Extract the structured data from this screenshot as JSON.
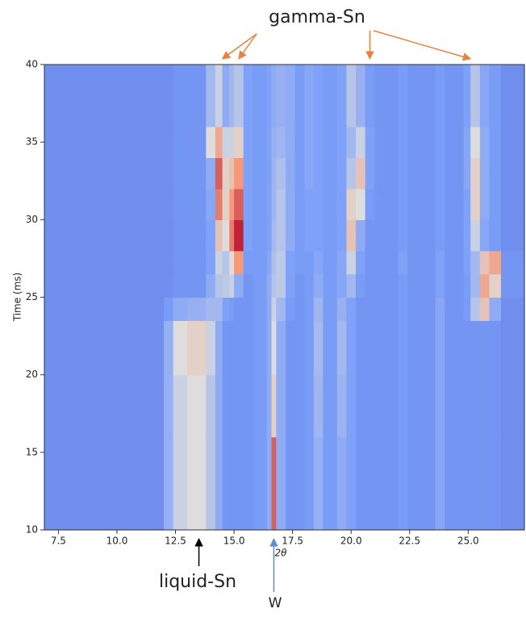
{
  "chart_data": {
    "type": "heatmap",
    "xlabel": "2θ",
    "ylabel": "Time (ms)",
    "colormap": "coolwarm",
    "xlim": [
      6.9,
      27.4
    ],
    "ylim": [
      10,
      40
    ],
    "xticks": [
      7.5,
      {
        "value": 10,
        "label": "10.0"
      },
      12.5,
      {
        "value": 15,
        "label": "15.0"
      },
      17.5,
      {
        "value": 20,
        "label": "20.0"
      },
      22.5,
      {
        "value": 25,
        "label": "25.0"
      }
    ],
    "yticks": [
      10,
      15,
      20,
      25,
      30,
      35,
      40
    ],
    "xbins": [
      6.9,
      12.0,
      12.4,
      13.0,
      13.8,
      14.2,
      14.5,
      14.8,
      15.0,
      15.4,
      15.8,
      16.4,
      16.6,
      16.8,
      17.2,
      17.6,
      18.0,
      18.4,
      18.8,
      19.4,
      19.8,
      20.2,
      20.6,
      21.0,
      22.0,
      22.4,
      23.6,
      24.0,
      24.8,
      25.1,
      25.5,
      25.9,
      26.4,
      27.4
    ],
    "ybins": [
      10,
      16,
      20,
      23.5,
      25,
      26.5,
      28,
      30,
      32,
      34,
      36,
      40
    ],
    "values": [
      [
        0.2,
        0.32,
        0.45,
        0.5,
        0.4,
        0.3,
        0.22,
        0.22,
        0.22,
        0.22,
        0.24,
        0.3,
        0.85,
        0.3,
        0.22,
        0.22,
        0.24,
        0.32,
        0.24,
        0.3,
        0.26,
        0.22,
        0.22,
        0.22,
        0.24,
        0.22,
        0.28,
        0.22,
        0.22,
        0.22,
        0.22,
        0.22,
        0.2
      ],
      [
        0.2,
        0.32,
        0.45,
        0.5,
        0.4,
        0.3,
        0.22,
        0.22,
        0.22,
        0.22,
        0.24,
        0.3,
        0.55,
        0.3,
        0.22,
        0.22,
        0.24,
        0.34,
        0.24,
        0.33,
        0.26,
        0.22,
        0.22,
        0.22,
        0.24,
        0.22,
        0.28,
        0.22,
        0.22,
        0.22,
        0.22,
        0.22,
        0.2
      ],
      [
        0.2,
        0.32,
        0.5,
        0.55,
        0.45,
        0.3,
        0.22,
        0.22,
        0.22,
        0.22,
        0.24,
        0.3,
        0.5,
        0.3,
        0.22,
        0.22,
        0.24,
        0.36,
        0.24,
        0.35,
        0.26,
        0.22,
        0.22,
        0.22,
        0.24,
        0.22,
        0.28,
        0.22,
        0.22,
        0.22,
        0.22,
        0.22,
        0.2
      ],
      [
        0.2,
        0.24,
        0.3,
        0.32,
        0.35,
        0.35,
        0.26,
        0.24,
        0.22,
        0.22,
        0.24,
        0.3,
        0.45,
        0.35,
        0.24,
        0.22,
        0.24,
        0.34,
        0.24,
        0.32,
        0.26,
        0.22,
        0.22,
        0.22,
        0.24,
        0.22,
        0.28,
        0.22,
        0.24,
        0.4,
        0.6,
        0.3,
        0.2
      ],
      [
        0.2,
        0.2,
        0.22,
        0.22,
        0.3,
        0.4,
        0.42,
        0.45,
        0.3,
        0.22,
        0.24,
        0.3,
        0.4,
        0.42,
        0.26,
        0.22,
        0.24,
        0.3,
        0.24,
        0.28,
        0.35,
        0.24,
        0.22,
        0.22,
        0.24,
        0.22,
        0.26,
        0.22,
        0.24,
        0.35,
        0.7,
        0.55,
        0.22
      ],
      [
        0.2,
        0.2,
        0.22,
        0.22,
        0.26,
        0.45,
        0.4,
        0.5,
        0.75,
        0.24,
        0.24,
        0.28,
        0.38,
        0.42,
        0.26,
        0.24,
        0.24,
        0.28,
        0.24,
        0.28,
        0.45,
        0.26,
        0.22,
        0.22,
        0.26,
        0.22,
        0.26,
        0.22,
        0.26,
        0.35,
        0.6,
        0.7,
        0.22
      ],
      [
        0.2,
        0.2,
        0.22,
        0.22,
        0.26,
        0.6,
        0.5,
        0.8,
        0.95,
        0.26,
        0.24,
        0.26,
        0.36,
        0.4,
        0.3,
        0.24,
        0.26,
        0.26,
        0.24,
        0.26,
        0.6,
        0.3,
        0.22,
        0.22,
        0.24,
        0.22,
        0.24,
        0.22,
        0.26,
        0.45,
        0.28,
        0.24,
        0.2
      ],
      [
        0.2,
        0.2,
        0.22,
        0.22,
        0.28,
        0.8,
        0.55,
        0.75,
        0.85,
        0.26,
        0.24,
        0.26,
        0.34,
        0.4,
        0.3,
        0.24,
        0.26,
        0.26,
        0.24,
        0.26,
        0.55,
        0.5,
        0.24,
        0.22,
        0.24,
        0.22,
        0.24,
        0.22,
        0.26,
        0.55,
        0.3,
        0.24,
        0.2
      ],
      [
        0.2,
        0.2,
        0.22,
        0.22,
        0.3,
        0.85,
        0.55,
        0.6,
        0.75,
        0.26,
        0.24,
        0.26,
        0.34,
        0.38,
        0.3,
        0.24,
        0.28,
        0.26,
        0.24,
        0.26,
        0.4,
        0.6,
        0.26,
        0.22,
        0.24,
        0.22,
        0.24,
        0.22,
        0.28,
        0.55,
        0.3,
        0.24,
        0.2
      ],
      [
        0.2,
        0.2,
        0.22,
        0.22,
        0.5,
        0.7,
        0.45,
        0.45,
        0.55,
        0.26,
        0.24,
        0.26,
        0.32,
        0.34,
        0.3,
        0.24,
        0.28,
        0.26,
        0.24,
        0.26,
        0.35,
        0.45,
        0.26,
        0.22,
        0.24,
        0.22,
        0.24,
        0.22,
        0.28,
        0.5,
        0.3,
        0.24,
        0.2
      ],
      [
        0.2,
        0.2,
        0.22,
        0.22,
        0.35,
        0.45,
        0.3,
        0.35,
        0.4,
        0.26,
        0.24,
        0.26,
        0.3,
        0.32,
        0.3,
        0.24,
        0.28,
        0.26,
        0.24,
        0.26,
        0.4,
        0.32,
        0.24,
        0.22,
        0.24,
        0.22,
        0.24,
        0.22,
        0.26,
        0.4,
        0.28,
        0.24,
        0.2
      ]
    ],
    "annotations": [
      {
        "text": "gamma-Sn",
        "color": "#e8823f",
        "targets": [
          14.5,
          15.2,
          20.8,
          25.1
        ]
      },
      {
        "text": "liquid-Sn",
        "color": "#000000",
        "targets": [
          13.5
        ]
      },
      {
        "text": "W",
        "color": "#5b8fd0",
        "targets": [
          16.7
        ]
      }
    ]
  }
}
